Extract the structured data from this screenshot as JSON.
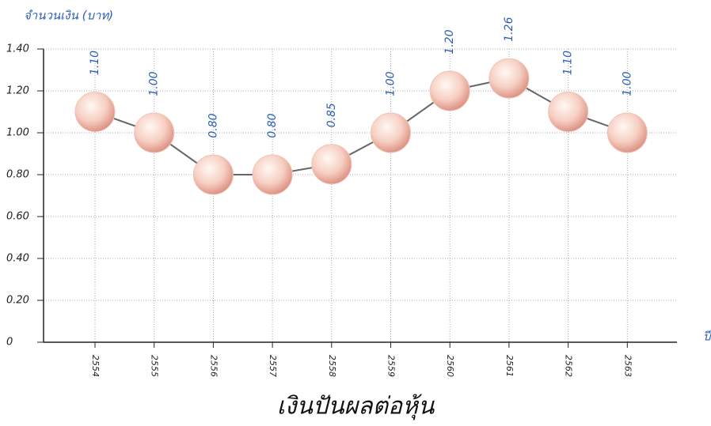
{
  "chart_data": {
    "type": "line",
    "title": "เงินปันผลต่อหุ้น",
    "y_label": "จำนวนเงิน (บาท)",
    "x_label": "ปี",
    "categories": [
      "2554",
      "2555",
      "2556",
      "2557",
      "2558",
      "2559",
      "2560",
      "2561",
      "2562",
      "2563"
    ],
    "values": [
      1.1,
      1.0,
      0.8,
      0.8,
      0.85,
      1.0,
      1.2,
      1.26,
      1.1,
      1.0
    ],
    "value_labels": [
      "1.10",
      "1.00",
      "0.80",
      "0.80",
      "0.85",
      "1.00",
      "1.20",
      "1.26",
      "1.10",
      "1.00"
    ],
    "color": "#f2c2b4",
    "ylim": [
      0,
      1.4
    ],
    "yticks": [
      0,
      {
        "value": 0.2,
        "label": "0.20"
      },
      {
        "value": 0.4,
        "label": "0.40"
      },
      {
        "value": 0.6,
        "label": "0.60"
      },
      {
        "value": 0.8,
        "label": "0.80"
      },
      {
        "value": 1.0,
        "label": "1.00"
      },
      {
        "value": 1.2,
        "label": "1.20"
      },
      {
        "value": 1.4,
        "label": "1.40"
      }
    ],
    "grid": true
  }
}
